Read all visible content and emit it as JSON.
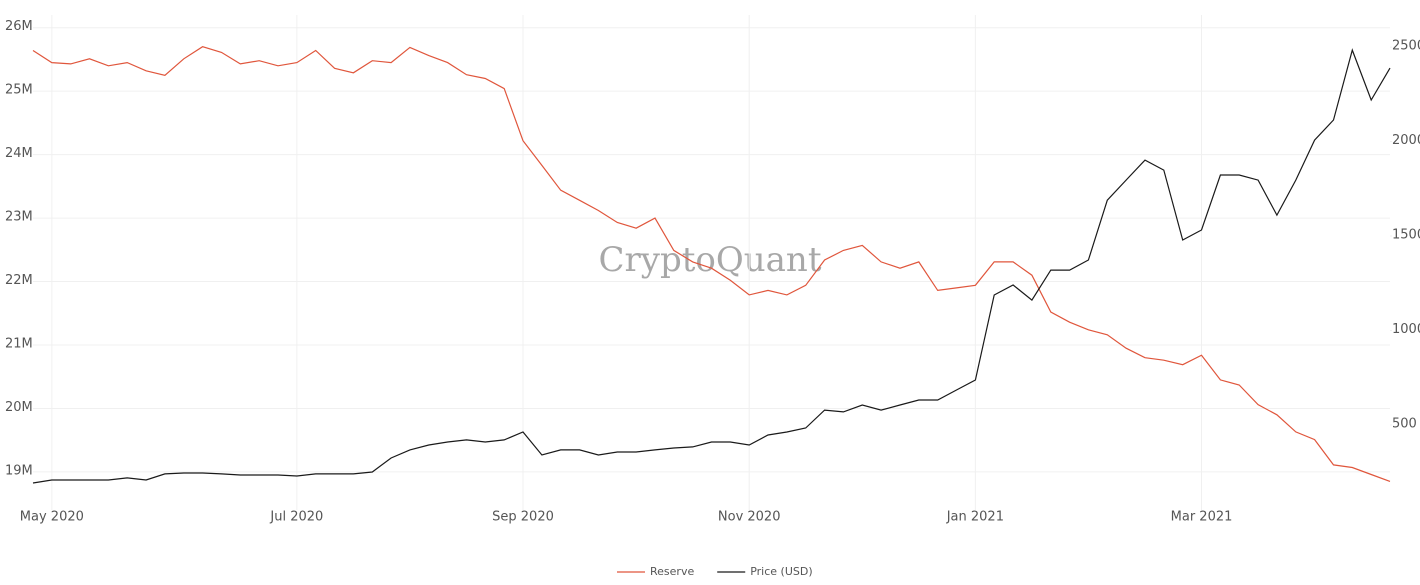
{
  "chart_data": {
    "type": "line",
    "watermark": "CryptoQuant",
    "categories": [
      null,
      "May 2020",
      null,
      null,
      null,
      null,
      null,
      null,
      null,
      null,
      null,
      null,
      null,
      null,
      "Jul 2020",
      null,
      null,
      null,
      null,
      null,
      null,
      null,
      null,
      null,
      null,
      null,
      "Sep 2020",
      null,
      null,
      null,
      null,
      null,
      null,
      null,
      null,
      null,
      null,
      null,
      "Nov 2020",
      null,
      null,
      null,
      null,
      null,
      null,
      null,
      null,
      null,
      null,
      null,
      "Jan 2021",
      null,
      null,
      null,
      null,
      null,
      null,
      null,
      null,
      null,
      null,
      null,
      "Mar 2021",
      null,
      null,
      null,
      null,
      null,
      null,
      null,
      null,
      null,
      null
    ],
    "series": [
      {
        "name": "Reserve",
        "color": "#e0563c",
        "axis": "y",
        "values": [
          25640000,
          25450000,
          25430000,
          25510000,
          25400000,
          25450000,
          25320000,
          25250000,
          25510000,
          25700000,
          25610000,
          25430000,
          25480000,
          25400000,
          25450000,
          25640000,
          25360000,
          25290000,
          25480000,
          25450000,
          25690000,
          25560000,
          25450000,
          25260000,
          25200000,
          25040000,
          24220000,
          23830000,
          23440000,
          23280000,
          23120000,
          22930000,
          22840000,
          23000000,
          22490000,
          22310000,
          22210000,
          22020000,
          21790000,
          21860000,
          21790000,
          21940000,
          22340000,
          22490000,
          22570000,
          22310000,
          22210000,
          22310000,
          21860000,
          21900000,
          21940000,
          22310000,
          22310000,
          22100000,
          21520000,
          21360000,
          21240000,
          21160000,
          20950000,
          20800000,
          20760000,
          20690000,
          20840000,
          20450000,
          20370000,
          20060000,
          19900000,
          19630000,
          19510000,
          19110000,
          19070000,
          18960000,
          18850000
        ]
      },
      {
        "name": "Price (USD)",
        "color": "#1a1a1a",
        "axis": "y2",
        "values": [
          193,
          209,
          209,
          209,
          209,
          220,
          209,
          241,
          246,
          246,
          241,
          235,
          235,
          235,
          230,
          241,
          241,
          241,
          251,
          325,
          368,
          394,
          410,
          421,
          410,
          421,
          463,
          341,
          368,
          368,
          341,
          357,
          357,
          368,
          378,
          384,
          410,
          410,
          394,
          447,
          463,
          484,
          579,
          569,
          606,
          579,
          606,
          632,
          632,
          685,
          738,
          1188,
          1241,
          1161,
          1320,
          1320,
          1373,
          1690,
          1796,
          1902,
          1849,
          1479,
          1532,
          1823,
          1823,
          1796,
          1611,
          1796,
          2008,
          2114,
          2484,
          2220,
          2389
        ]
      }
    ],
    "ylim": [
      18400000,
      26200000
    ],
    "yticks": [
      {
        "value": 19000000,
        "label": "19M"
      },
      {
        "value": 20000000,
        "label": "20M"
      },
      {
        "value": 21000000,
        "label": "21M"
      },
      {
        "value": 22000000,
        "label": "22M"
      },
      {
        "value": 23000000,
        "label": "23M"
      },
      {
        "value": 24000000,
        "label": "24M"
      },
      {
        "value": 25000000,
        "label": "25M"
      },
      {
        "value": 26000000,
        "label": "26M"
      }
    ],
    "y2lim": [
      50,
      2670
    ],
    "y2ticks": [
      500,
      1000,
      1500,
      2000,
      2500
    ],
    "grid": true,
    "legend": "bottom"
  }
}
